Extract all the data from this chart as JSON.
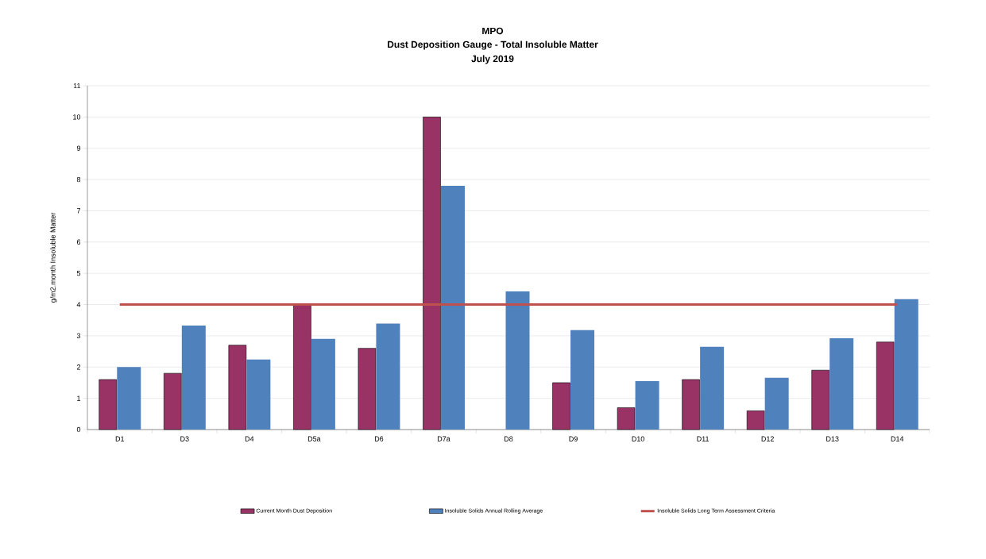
{
  "chart_data": {
    "type": "bar",
    "title": "MPO",
    "subtitle": "Dust Deposition Gauge - Total Insoluble Matter",
    "annotations": [
      "July 2019"
    ],
    "ylabel": "g/m2.month Insoluble Matter",
    "categories": [
      "D1",
      "D3",
      "D4",
      "D5a",
      "D6",
      "D7a",
      "D8",
      "D9",
      "D10",
      "D11",
      "D12",
      "D13",
      "D14"
    ],
    "series": [
      {
        "name": "Current Month Dust Deposition",
        "color": "#993366",
        "values": [
          1.6,
          1.8,
          2.7,
          4.0,
          2.6,
          10.0,
          null,
          1.5,
          0.7,
          1.6,
          0.6,
          1.9,
          2.8
        ]
      },
      {
        "name": "Insoluble Solids Annual Rolling Average",
        "color": "#4f81bd",
        "values": [
          2.0,
          3.33,
          2.24,
          2.9,
          3.39,
          7.8,
          4.42,
          3.18,
          1.55,
          2.65,
          1.66,
          2.92,
          4.17
        ]
      },
      {
        "name": "Insoluble Solids Long Term Assessment Criteria",
        "type": "line",
        "color": "#c0504d",
        "values": [
          4,
          4,
          4,
          4,
          4,
          4,
          4,
          4,
          4,
          4,
          4,
          4,
          4
        ]
      }
    ],
    "ylim": [
      0,
      11
    ],
    "yticks": [
      0,
      1,
      2,
      3,
      4,
      5,
      6,
      7,
      8,
      9,
      10,
      11
    ],
    "grid": "y",
    "legend": "bottom"
  }
}
